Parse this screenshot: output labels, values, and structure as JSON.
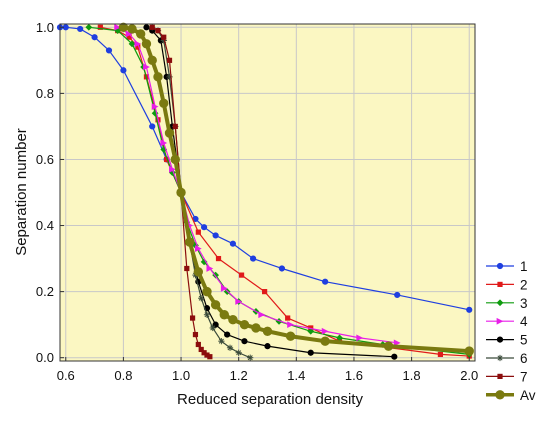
{
  "chart_data": {
    "type": "line",
    "title": "",
    "xlabel": "Reduced separation density",
    "ylabel": "Separation number",
    "xlim": [
      0.58,
      2.02
    ],
    "ylim": [
      -0.01,
      1.01
    ],
    "xticks": [
      "0.6",
      "0.8",
      "1.0",
      "1.2",
      "1.4",
      "1.6",
      "1.8",
      "2.0"
    ],
    "yticks": [
      "0.0",
      "0.2",
      "0.4",
      "0.6",
      "0.8",
      "1.0"
    ],
    "xtick_values": [
      0.6,
      0.8,
      1.0,
      1.2,
      1.4,
      1.6,
      1.8,
      2.0
    ],
    "ytick_values": [
      0.0,
      0.2,
      0.4,
      0.6,
      0.8,
      1.0
    ],
    "grid": true,
    "plot_background": "#fbf7c2",
    "grid_color": "#c8c8c8",
    "legend_placement": "right-bottom, outside plot",
    "series": [
      {
        "name": "1",
        "color": "#1f3fe0",
        "marker": "circle",
        "thick": false,
        "x": [
          0.58,
          0.6,
          0.65,
          0.7,
          0.75,
          0.8,
          0.9,
          0.95,
          1.0,
          1.05,
          1.08,
          1.12,
          1.18,
          1.25,
          1.35,
          1.5,
          1.75,
          2.0
        ],
        "y": [
          1.0,
          1.0,
          0.995,
          0.97,
          0.93,
          0.87,
          0.7,
          0.6,
          0.5,
          0.42,
          0.395,
          0.37,
          0.345,
          0.3,
          0.27,
          0.23,
          0.19,
          0.145
        ]
      },
      {
        "name": "2",
        "color": "#e01a1a",
        "marker": "square",
        "thick": false,
        "x": [
          0.72,
          0.78,
          0.82,
          0.85,
          0.88,
          0.92,
          0.95,
          1.0,
          1.06,
          1.13,
          1.21,
          1.29,
          1.37,
          1.45,
          1.55,
          1.9,
          2.0
        ],
        "y": [
          1.0,
          0.99,
          0.97,
          0.94,
          0.85,
          0.72,
          0.6,
          0.5,
          0.38,
          0.3,
          0.25,
          0.2,
          0.12,
          0.09,
          0.05,
          0.01,
          0.005
        ]
      },
      {
        "name": "3",
        "color": "#0f9b0f",
        "marker": "diamond",
        "thick": false,
        "x": [
          0.68,
          0.78,
          0.83,
          0.87,
          0.91,
          0.94,
          0.97,
          1.0,
          1.02,
          1.05,
          1.08,
          1.12,
          1.16,
          1.2,
          1.26,
          1.34,
          1.45,
          1.55,
          1.7,
          2.0
        ],
        "y": [
          1.0,
          0.99,
          0.95,
          0.88,
          0.74,
          0.63,
          0.56,
          0.5,
          0.41,
          0.34,
          0.29,
          0.25,
          0.2,
          0.17,
          0.14,
          0.11,
          0.08,
          0.06,
          0.04,
          0.01
        ]
      },
      {
        "name": "4",
        "color": "#e81ee8",
        "marker": "triangle",
        "thick": false,
        "x": [
          0.78,
          0.82,
          0.85,
          0.88,
          0.91,
          0.94,
          0.97,
          1.0,
          1.03,
          1.06,
          1.1,
          1.15,
          1.2,
          1.28,
          1.38,
          1.5,
          1.62,
          1.75
        ],
        "y": [
          1.0,
          0.98,
          0.95,
          0.88,
          0.76,
          0.65,
          0.57,
          0.5,
          0.4,
          0.33,
          0.27,
          0.21,
          0.17,
          0.13,
          0.1,
          0.08,
          0.06,
          0.045
        ]
      },
      {
        "name": "5",
        "color": "#000000",
        "marker": "circle",
        "thick": false,
        "x": [
          0.88,
          0.9,
          0.93,
          0.95,
          0.97,
          1.0,
          1.03,
          1.06,
          1.09,
          1.12,
          1.16,
          1.22,
          1.3,
          1.45,
          1.74
        ],
        "y": [
          1.0,
          0.99,
          0.96,
          0.85,
          0.7,
          0.5,
          0.35,
          0.23,
          0.15,
          0.1,
          0.07,
          0.05,
          0.035,
          0.015,
          0.003
        ]
      },
      {
        "name": "6",
        "color": "#3a4a3a",
        "marker": "asterisk",
        "thick": false,
        "x": [
          0.9,
          0.92,
          0.94,
          0.96,
          0.98,
          1.0,
          1.03,
          1.05,
          1.07,
          1.09,
          1.11,
          1.14,
          1.17,
          1.2,
          1.24
        ],
        "y": [
          1.0,
          0.99,
          0.96,
          0.85,
          0.7,
          0.5,
          0.35,
          0.25,
          0.18,
          0.13,
          0.09,
          0.05,
          0.03,
          0.015,
          0.0
        ]
      },
      {
        "name": "7",
        "color": "#8b0d0d",
        "marker": "square",
        "thick": false,
        "x": [
          0.9,
          0.92,
          0.94,
          0.96,
          0.98,
          1.0,
          1.02,
          1.04,
          1.05,
          1.06,
          1.07,
          1.08,
          1.09,
          1.1
        ],
        "y": [
          1.0,
          0.99,
          0.97,
          0.9,
          0.7,
          0.5,
          0.27,
          0.12,
          0.07,
          0.04,
          0.025,
          0.015,
          0.008,
          0.003
        ]
      },
      {
        "name": "Av",
        "color": "#7a7a10",
        "marker": "circle",
        "thick": true,
        "x": [
          0.8,
          0.83,
          0.86,
          0.88,
          0.9,
          0.92,
          0.94,
          0.96,
          0.98,
          1.0,
          1.03,
          1.06,
          1.09,
          1.12,
          1.15,
          1.18,
          1.22,
          1.26,
          1.3,
          1.38,
          1.5,
          1.72,
          2.0
        ],
        "y": [
          1.0,
          0.995,
          0.98,
          0.95,
          0.9,
          0.85,
          0.77,
          0.68,
          0.6,
          0.5,
          0.35,
          0.26,
          0.2,
          0.16,
          0.13,
          0.115,
          0.1,
          0.09,
          0.08,
          0.065,
          0.05,
          0.035,
          0.02
        ]
      }
    ]
  }
}
